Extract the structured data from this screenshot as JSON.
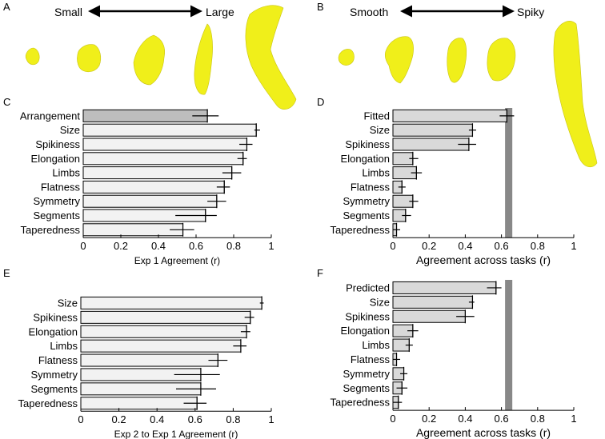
{
  "panel_letters": {
    "A": "A",
    "B": "B",
    "C": "C",
    "D": "D",
    "E": "E",
    "F": "F"
  },
  "panel_a": {
    "left_label": "Small",
    "right_label": "Large"
  },
  "panel_b": {
    "left_label": "Smooth",
    "right_label": "Spiky"
  },
  "colors": {
    "bar_light": "#f2f2f2",
    "bar_mid": "#d9d9d9",
    "bar_dark": "#bdbdbd",
    "ceiling": "#888888",
    "shape": "#f0ef1a"
  },
  "chart_data": [
    {
      "panel": "C",
      "type": "bar",
      "orientation": "horizontal",
      "categories": [
        "Arrangement",
        "Size",
        "Spikiness",
        "Elongation",
        "Limbs",
        "Flatness",
        "Symmetry",
        "Segments",
        "Taperedness"
      ],
      "values": [
        0.66,
        0.92,
        0.87,
        0.85,
        0.79,
        0.75,
        0.71,
        0.65,
        0.53
      ],
      "err_low": [
        0.58,
        0.91,
        0.83,
        0.82,
        0.74,
        0.71,
        0.66,
        0.49,
        0.46
      ],
      "err_high": [
        0.72,
        0.94,
        0.9,
        0.87,
        0.84,
        0.78,
        0.76,
        0.71,
        0.59
      ],
      "highlight": [
        0
      ],
      "xlabel": "Exp 1 Agreement (r)",
      "xlim": [
        0,
        1
      ],
      "xticks": [
        "0",
        "0.2",
        "0.4",
        "0.6",
        "0.8",
        "1"
      ],
      "ceiling": null
    },
    {
      "panel": "D",
      "type": "bar",
      "orientation": "horizontal",
      "categories": [
        "Fitted",
        "Size",
        "Spikiness",
        "Elongation",
        "Limbs",
        "Flatness",
        "Symmetry",
        "Segments",
        "Taperedness"
      ],
      "values": [
        0.63,
        0.44,
        0.42,
        0.11,
        0.13,
        0.05,
        0.11,
        0.07,
        0.02
      ],
      "err_low": [
        0.59,
        0.42,
        0.36,
        0.09,
        0.1,
        0.03,
        0.09,
        0.05,
        0.0
      ],
      "err_high": [
        0.67,
        0.46,
        0.46,
        0.14,
        0.16,
        0.07,
        0.14,
        0.1,
        0.04
      ],
      "highlight": [],
      "xlabel": "Agreement across tasks (r)",
      "xlim": [
        0,
        1
      ],
      "xticks": [
        "0",
        "0.2",
        "0.4",
        "0.6",
        "0.8",
        "1"
      ],
      "ceiling": [
        0.62,
        0.66
      ]
    },
    {
      "panel": "E",
      "type": "bar",
      "orientation": "horizontal",
      "categories": [
        "Size",
        "Spikiness",
        "Elongation",
        "Limbs",
        "Flatness",
        "Symmetry",
        "Segments",
        "Taperedness"
      ],
      "values": [
        0.95,
        0.89,
        0.87,
        0.84,
        0.72,
        0.63,
        0.63,
        0.61
      ],
      "err_low": [
        0.94,
        0.86,
        0.84,
        0.8,
        0.67,
        0.49,
        0.5,
        0.54
      ],
      "err_high": [
        0.96,
        0.91,
        0.89,
        0.87,
        0.77,
        0.73,
        0.71,
        0.66
      ],
      "highlight": [],
      "xlabel": "Exp 2 to Exp 1 Agreement (r)",
      "xlim": [
        0,
        1
      ],
      "xticks": [
        "0",
        "0.2",
        "0.4",
        "0.6",
        "0.8",
        "1"
      ],
      "ceiling": null
    },
    {
      "panel": "F",
      "type": "bar",
      "orientation": "horizontal",
      "categories": [
        "Predicted",
        "Size",
        "Spikiness",
        "Elongation",
        "Limbs",
        "Flatness",
        "Symmetry",
        "Segments",
        "Taperedness"
      ],
      "values": [
        0.57,
        0.44,
        0.4,
        0.11,
        0.09,
        0.02,
        0.06,
        0.05,
        0.03
      ],
      "err_low": [
        0.52,
        0.42,
        0.35,
        0.08,
        0.07,
        0.0,
        0.04,
        0.02,
        0.0
      ],
      "err_high": [
        0.6,
        0.45,
        0.45,
        0.14,
        0.11,
        0.04,
        0.08,
        0.08,
        0.05
      ],
      "highlight": [],
      "xlabel": "Agreement across tasks (r)",
      "xlim": [
        0,
        1
      ],
      "xticks": [
        "0",
        "0.2",
        "0.4",
        "0.6",
        "0.8",
        "1"
      ],
      "ceiling": [
        0.62,
        0.66
      ]
    }
  ]
}
